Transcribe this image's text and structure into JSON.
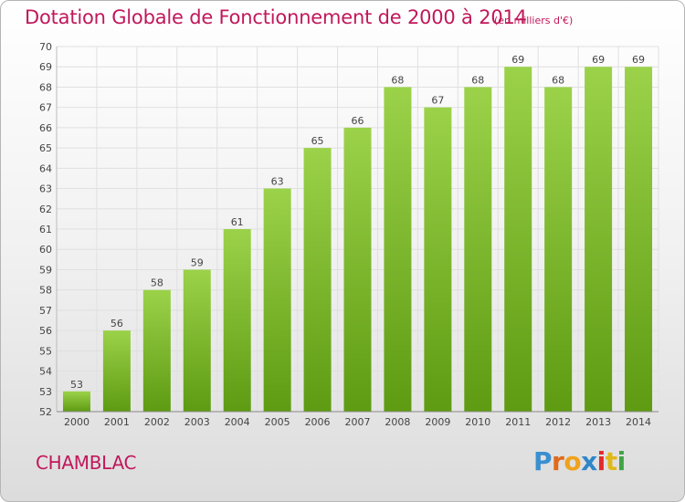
{
  "title": "Dotation Globale de Fonctionnement de 2000 à 2014",
  "subtitle": "(en milliers d'€)",
  "commune": "CHAMBLAC",
  "logo": {
    "text": "Proxiti",
    "letter_colors": [
      "#3a8fd0",
      "#e06a1b",
      "#f0a21c",
      "#2f86c9",
      "#e22a2a",
      "#e0b81a",
      "#41a346"
    ]
  },
  "colors": {
    "bar_top": "#9bd24a",
    "bar_bottom": "#5e9b12",
    "grid": "#e0e0e0",
    "axis_text": "#444444",
    "accent": "#c1185b"
  },
  "chart_data": {
    "type": "bar",
    "categories": [
      "2000",
      "2001",
      "2002",
      "2003",
      "2004",
      "2005",
      "2006",
      "2007",
      "2008",
      "2009",
      "2010",
      "2011",
      "2012",
      "2013",
      "2014"
    ],
    "values": [
      53,
      56,
      58,
      59,
      61,
      63,
      65,
      66,
      68,
      67,
      68,
      69,
      68,
      69,
      69
    ],
    "ylim": [
      52,
      70
    ],
    "yticks": [
      52,
      53,
      54,
      55,
      56,
      57,
      58,
      59,
      60,
      61,
      62,
      63,
      64,
      65,
      66,
      67,
      68,
      69,
      70
    ],
    "grid": true,
    "data_labels": true
  }
}
